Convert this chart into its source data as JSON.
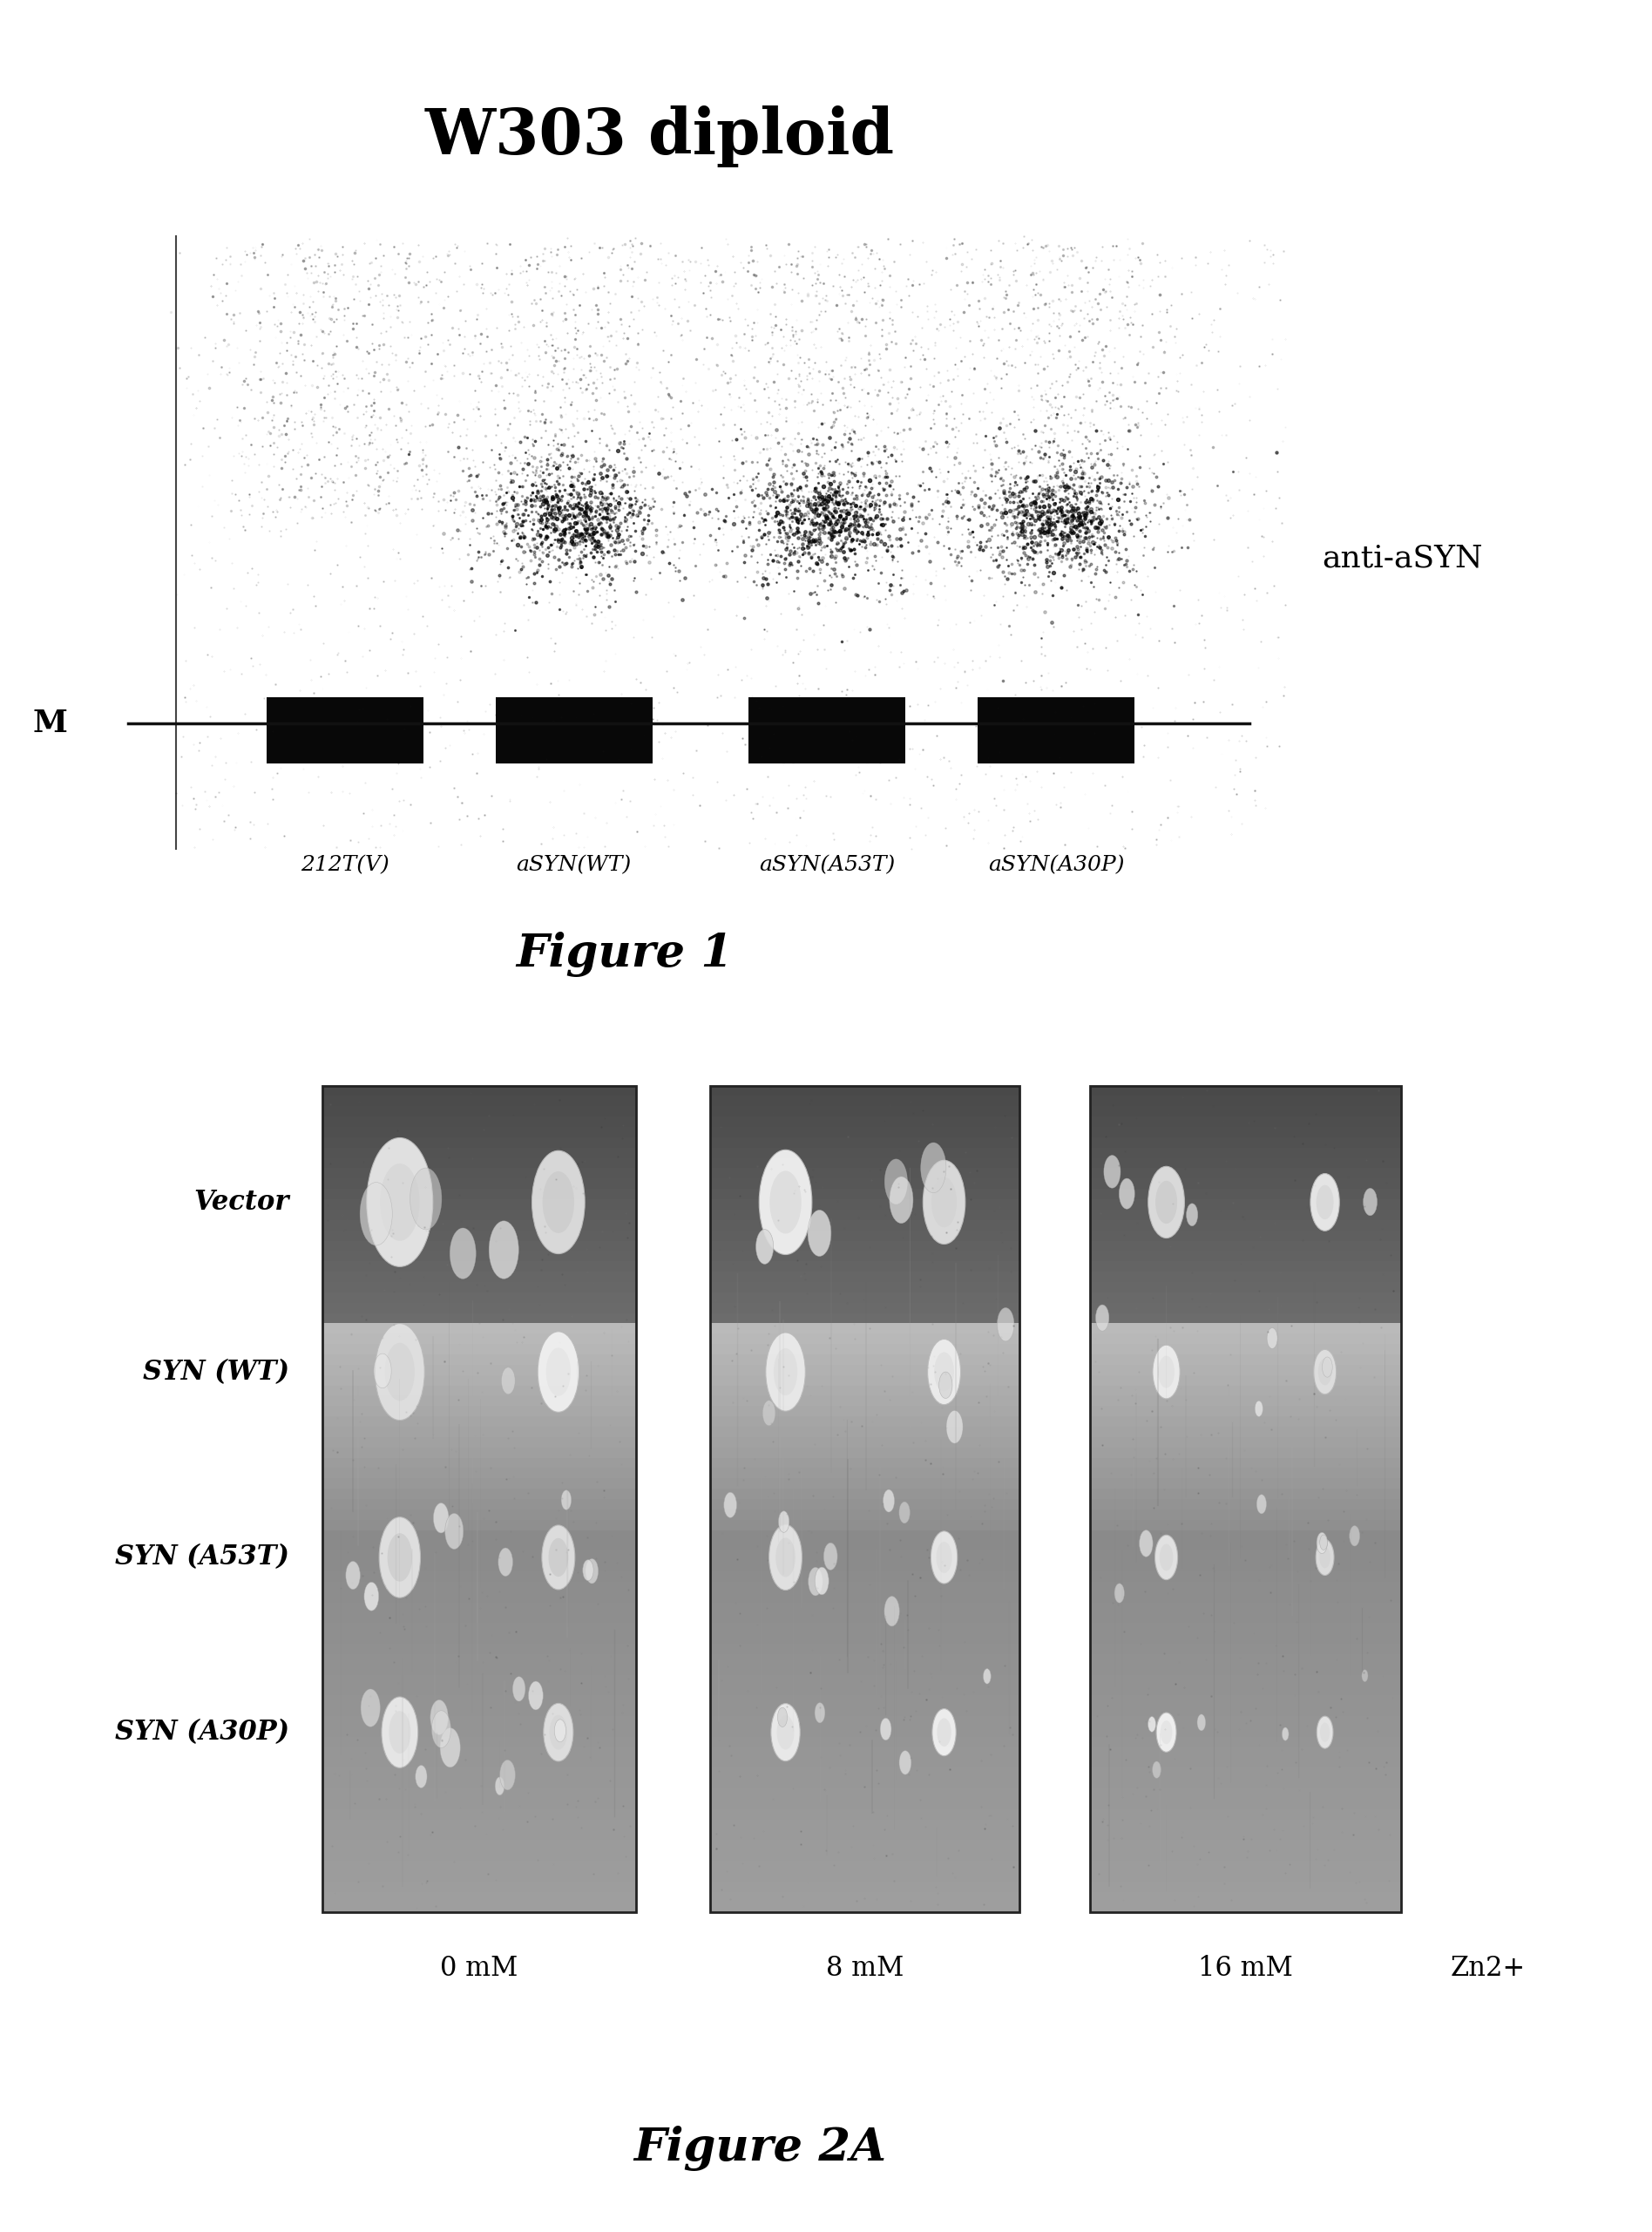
{
  "title1": "W303 diploid",
  "fig1_label": "Figure 1",
  "fig2_label": "Figure 2A",
  "anti_asyn_label": "anti-aSYN",
  "M_label": "M",
  "lane_labels": [
    "212T(V)",
    "aSYN(WT)",
    "aSYN(A53T)",
    "aSYN(A30P)"
  ],
  "row_labels": [
    "Vector",
    "SYN (WT)",
    "SYN (A53T)",
    "SYN (A30P)"
  ],
  "col_labels": [
    "0 mM",
    "8 mM",
    "16 mM"
  ],
  "zn_label": "Zn2+",
  "bg_color": "#ffffff",
  "title1_fontsize": 52,
  "fig_label_fontsize": 38,
  "lane_label_fontsize": 18,
  "row_label_fontsize": 22,
  "col_label_fontsize": 22,
  "anti_label_fontsize": 26,
  "M_fontsize": 26,
  "zn_fontsize": 22
}
